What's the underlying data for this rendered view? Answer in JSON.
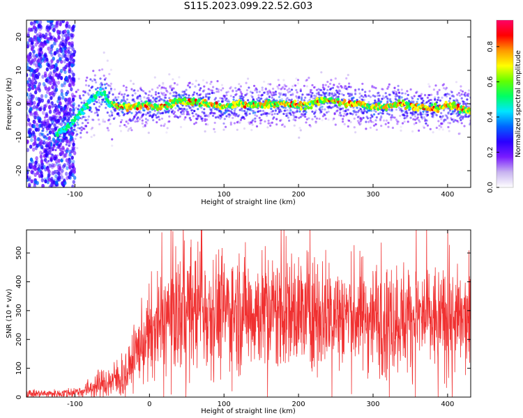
{
  "title": "S115.2023.099.22.52.G03",
  "chart_data": [
    {
      "type": "heatmap",
      "title": "S115.2023.099.22.52.G03",
      "xlabel": "Height of straight line (km)",
      "ylabel": "Frequency (Hz)",
      "xlim": [
        -165,
        431
      ],
      "ylim": [
        -25,
        25
      ],
      "xticks": [
        -100,
        0,
        100,
        200,
        300,
        400
      ],
      "yticks": [
        -20,
        -10,
        0,
        10,
        20
      ],
      "colorbar": {
        "label": "Normalized spectral amplitude",
        "range": [
          0,
          0.95
        ],
        "ticks": [
          0.0,
          0.2,
          0.4,
          0.6,
          0.8
        ],
        "colormap": [
          "#ffffff",
          "#c8b4f0",
          "#7a1cff",
          "#2a00ff",
          "#0064ff",
          "#00e6ff",
          "#00ff64",
          "#64ff00",
          "#ffff00",
          "#ff9900",
          "#ff0000",
          "#ff0066"
        ]
      },
      "ridge": {
        "x": [
          -130,
          -110,
          -100,
          -90,
          -80,
          -70,
          -62,
          -55,
          -45,
          -30,
          -10,
          0,
          20,
          40,
          60,
          80,
          100,
          120,
          140,
          160,
          180,
          200,
          220,
          240,
          260,
          280,
          300,
          320,
          340,
          360,
          380,
          400,
          420,
          431
        ],
        "y": [
          -10,
          -7,
          -5,
          -2,
          1,
          3,
          3.5,
          0.5,
          -0.8,
          -1,
          -0.5,
          -0.8,
          -0.8,
          1,
          0.5,
          0,
          -1,
          0,
          -0.5,
          0,
          0,
          -0.5,
          0,
          1.5,
          0,
          0,
          -1,
          -0.5,
          0,
          -1,
          -1.5,
          -0.5,
          -1.5,
          -2
        ]
      }
    },
    {
      "type": "line",
      "xlabel": "Height of straight line (km)",
      "ylabel": "SNR (10 * v/v)",
      "xlim": [
        -165,
        431
      ],
      "ylim": [
        0,
        580
      ],
      "xticks": [
        -100,
        0,
        100,
        200,
        300,
        400
      ],
      "yticks": [
        0,
        100,
        200,
        300,
        400,
        500
      ],
      "color": "#f03030",
      "envelope": {
        "x": [
          -165,
          -120,
          -90,
          -70,
          -50,
          -30,
          -20,
          0,
          20,
          40,
          60,
          80,
          100,
          150,
          200,
          250,
          300,
          350,
          400,
          431
        ],
        "y": [
          12,
          12,
          20,
          40,
          55,
          80,
          150,
          220,
          270,
          300,
          310,
          305,
          300,
          300,
          295,
          290,
          280,
          275,
          265,
          255
        ]
      }
    }
  ]
}
